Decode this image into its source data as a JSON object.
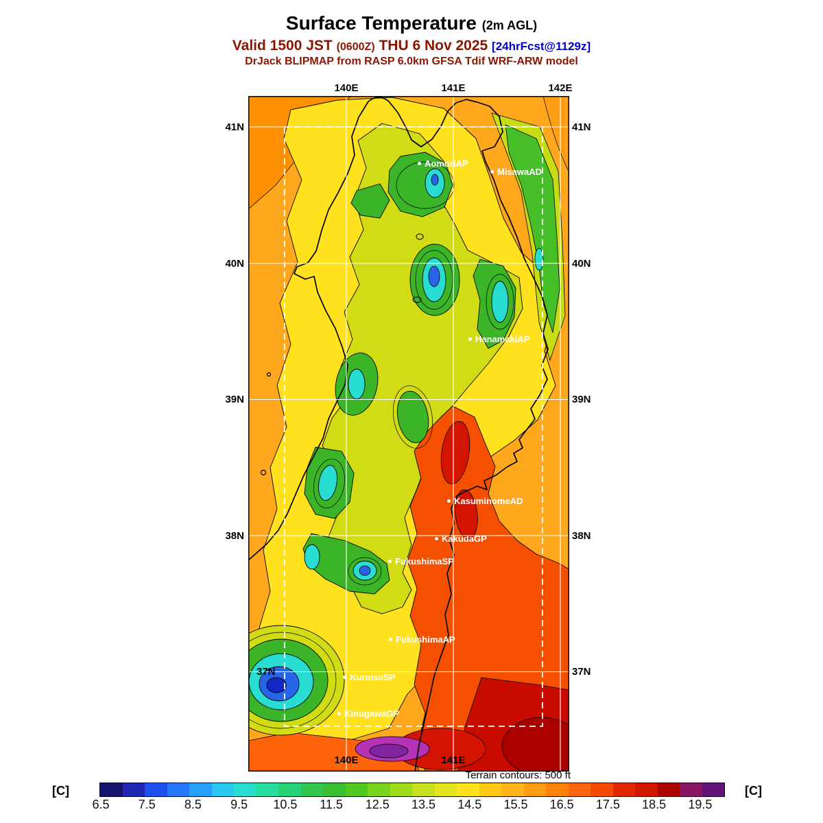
{
  "header": {
    "title": "Surface Temperature",
    "title_suffix": "(2m AGL)",
    "valid_prefix": "Valid 1500 JST",
    "valid_zulu": "(0600Z)",
    "valid_date": "THU 6 Nov 2025",
    "forecast_tag": "[24hrFcst@1129z]",
    "model_line": "DrJack BLIPMAP from RASP 6.0km GFSA Tdif WRF-ARW model"
  },
  "map": {
    "top_longitude_labels": [
      "140E",
      "141E",
      "142E"
    ],
    "bottom_longitude_labels": [
      "140E",
      "141E"
    ],
    "latitude_labels": [
      "41N",
      "40N",
      "39N",
      "38N",
      "37N"
    ],
    "stations": [
      {
        "name": "AomoriAP"
      },
      {
        "name": "MisawaAD"
      },
      {
        "name": "HanamakiAP"
      },
      {
        "name": "KasuminomeAD"
      },
      {
        "name": "KakudaGP"
      },
      {
        "name": "FukushimaSP"
      },
      {
        "name": "FukushimaAP"
      },
      {
        "name": "KuroisoSP"
      },
      {
        "name": "KinugawaGP"
      }
    ],
    "footnote": "Terrain contours: 500 ft"
  },
  "colorbar": {
    "unit": "[C]",
    "tick_labels": [
      "6.5",
      "7.5",
      "8.5",
      "9.5",
      "10.5",
      "11.5",
      "12.5",
      "13.5",
      "14.5",
      "15.5",
      "16.5",
      "17.5",
      "18.5",
      "19.5"
    ],
    "segment_colors": [
      "#14146E",
      "#1E28B4",
      "#1E50F0",
      "#2878FF",
      "#28A0FF",
      "#28C8F0",
      "#28DCD2",
      "#28DCA0",
      "#28D278",
      "#32C850",
      "#3CBE32",
      "#50C81E",
      "#78D21E",
      "#A0DC1E",
      "#C8E11E",
      "#E6E61E",
      "#FFE11E",
      "#FFC814",
      "#FFB41E",
      "#FF9E14",
      "#FF820A",
      "#FF6414",
      "#F54B00",
      "#E12800",
      "#D21400",
      "#AA0000",
      "#8C1464",
      "#641478"
    ]
  }
}
